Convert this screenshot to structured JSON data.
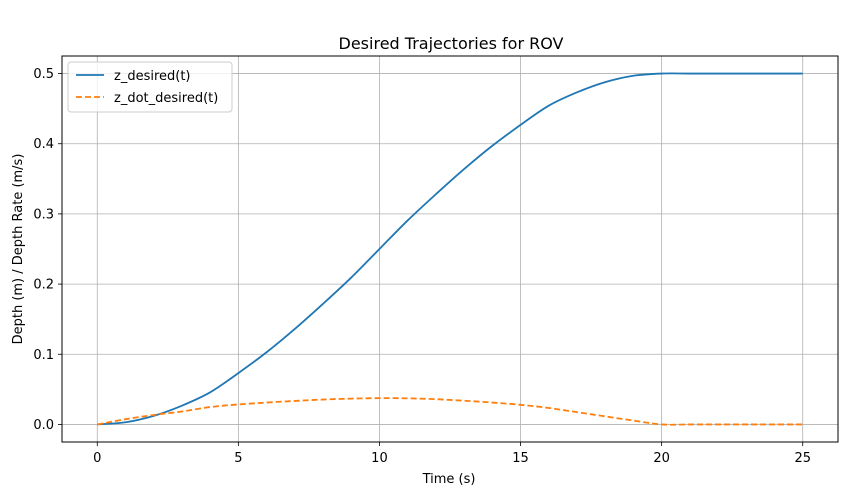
{
  "chart_data": {
    "type": "line",
    "title": "Desired Trajectories for ROV",
    "xlabel": "Time (s)",
    "ylabel": "Depth (m) / Depth Rate (m/s)",
    "xlim": [
      -1.25,
      26.25
    ],
    "ylim": [
      -0.025,
      0.525
    ],
    "xticks": [
      0,
      5,
      10,
      15,
      20,
      25
    ],
    "xtick_labels": [
      "0",
      "5",
      "10",
      "15",
      "20",
      "25"
    ],
    "yticks": [
      0.0,
      0.1,
      0.2,
      0.3,
      0.4,
      0.5
    ],
    "ytick_labels": [
      "0.0",
      "0.1",
      "0.2",
      "0.3",
      "0.4",
      "0.5"
    ],
    "grid": true,
    "legend": "top-left",
    "series": [
      {
        "name": "z_desired(t)",
        "color": "#1f77b4",
        "style": "solid",
        "x": [
          0,
          1,
          2,
          3,
          4,
          5,
          6,
          7,
          8,
          9,
          10,
          11,
          12,
          13,
          14,
          15,
          16,
          17,
          18,
          19,
          20,
          21,
          22,
          23,
          24,
          25
        ],
        "y": [
          0.0,
          0.0031,
          0.0122,
          0.0268,
          0.0458,
          0.0732,
          0.1029,
          0.1361,
          0.1719,
          0.2093,
          0.25,
          0.2907,
          0.3281,
          0.3639,
          0.3971,
          0.4268,
          0.4542,
          0.4732,
          0.4878,
          0.4969,
          0.5,
          0.5,
          0.5,
          0.5,
          0.5,
          0.5
        ]
      },
      {
        "name": "z_dot_desired(t)",
        "color": "#ff7f0e",
        "style": "dashed",
        "x": [
          0,
          1,
          2,
          3,
          4,
          5,
          6,
          7,
          8,
          9,
          10,
          11,
          12,
          13,
          14,
          15,
          16,
          17,
          18,
          19,
          20,
          21,
          22,
          23,
          24,
          25
        ],
        "y": [
          0.0,
          0.0075,
          0.0135,
          0.0185,
          0.0248,
          0.0285,
          0.0312,
          0.0335,
          0.0355,
          0.0368,
          0.0375,
          0.0372,
          0.036,
          0.0338,
          0.0312,
          0.028,
          0.0235,
          0.0175,
          0.0115,
          0.0055,
          0.0,
          0.0,
          0.0,
          0.0,
          0.0,
          0.0
        ]
      }
    ]
  }
}
